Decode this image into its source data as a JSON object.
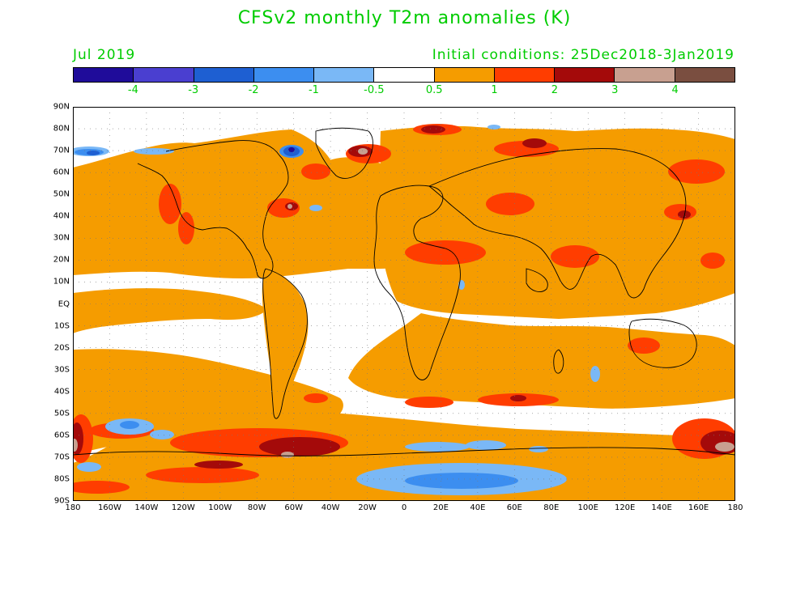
{
  "title": "CFSv2 monthly T2m anomalies (K)",
  "valid_month": "Jul 2019",
  "initial_conditions": "Initial conditions: 25Dec2018-3Jan2019",
  "colors": {
    "text_green": "#00cc00",
    "palette": [
      "#1f0c9a",
      "#4a3fd0",
      "#1e5fd2",
      "#3c8ef0",
      "#7ab8f6",
      "#ffffff",
      "#f59c00",
      "#ff3d00",
      "#a40a0a",
      "#c8a090",
      "#7a4e40"
    ]
  },
  "colorbar": {
    "tick_labels": [
      "-4",
      "-3",
      "-2",
      "-1",
      "-0.5",
      "0.5",
      "1",
      "2",
      "3",
      "4"
    ]
  },
  "axes": {
    "lat_labels": [
      "90N",
      "80N",
      "70N",
      "60N",
      "50N",
      "40N",
      "30N",
      "20N",
      "10N",
      "EQ",
      "10S",
      "20S",
      "30S",
      "40S",
      "50S",
      "60S",
      "70S",
      "80S",
      "90S"
    ],
    "lon_labels": [
      "180",
      "160W",
      "140W",
      "120W",
      "100W",
      "80W",
      "60W",
      "40W",
      "20W",
      "0",
      "20E",
      "40E",
      "60E",
      "80E",
      "100E",
      "120E",
      "140E",
      "160E",
      "180"
    ],
    "lat_range": [
      -90,
      90
    ],
    "lon_range": [
      -180,
      180
    ],
    "grid": "dotted"
  }
}
